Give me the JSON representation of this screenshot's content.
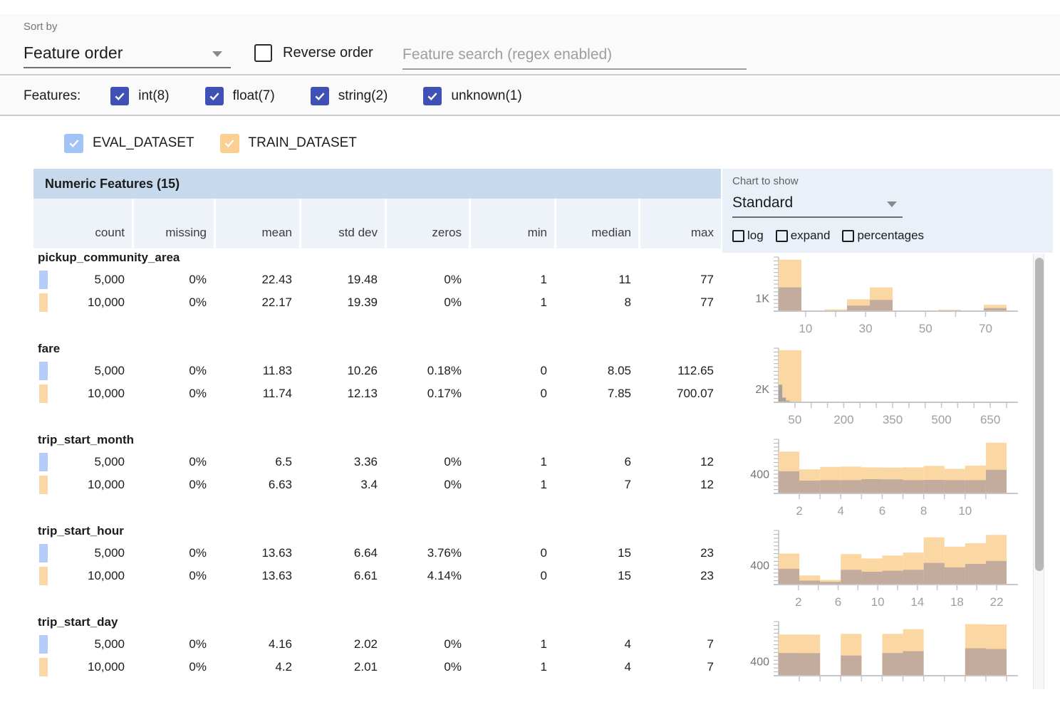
{
  "toolbar": {
    "sort_by_label": "Sort by",
    "sort_value": "Feature order",
    "reverse_label": "Reverse order",
    "search_placeholder": "Feature search (regex enabled)"
  },
  "filters": {
    "label": "Features:",
    "checkbox_color": "#3f51b5",
    "items": [
      {
        "label": "int(8)",
        "checked": true
      },
      {
        "label": "float(7)",
        "checked": true
      },
      {
        "label": "string(2)",
        "checked": true
      },
      {
        "label": "unknown(1)",
        "checked": true
      }
    ]
  },
  "datasets": [
    {
      "name": "EVAL_DATASET",
      "legend_color": "#a2c3f6",
      "chip_color": "#b4cdf8"
    },
    {
      "name": "TRAIN_DATASET",
      "legend_color": "#fbce92",
      "chip_color": "#fad8a6"
    }
  ],
  "table": {
    "title": "Numeric Features (15)",
    "columns": [
      "count",
      "missing",
      "mean",
      "std dev",
      "zeros",
      "min",
      "median",
      "max"
    ]
  },
  "chart_panel": {
    "label": "Chart to show",
    "selected": "Standard",
    "checkboxes": [
      "log",
      "expand",
      "percentages"
    ]
  },
  "features": [
    {
      "name": "pickup_community_area",
      "rows": [
        {
          "dataset": "EVAL_DATASET",
          "values": [
            "5,000",
            "0%",
            "22.43",
            "19.48",
            "0%",
            "1",
            "11",
            "77"
          ]
        },
        {
          "dataset": "TRAIN_DATASET",
          "values": [
            "10,000",
            "0%",
            "22.17",
            "19.39",
            "0%",
            "1",
            "8",
            "77"
          ]
        }
      ]
    },
    {
      "name": "fare",
      "rows": [
        {
          "dataset": "EVAL_DATASET",
          "values": [
            "5,000",
            "0%",
            "11.83",
            "10.26",
            "0.18%",
            "0",
            "8.05",
            "112.65"
          ]
        },
        {
          "dataset": "TRAIN_DATASET",
          "values": [
            "10,000",
            "0%",
            "11.74",
            "12.13",
            "0.17%",
            "0",
            "7.85",
            "700.07"
          ]
        }
      ]
    },
    {
      "name": "trip_start_month",
      "rows": [
        {
          "dataset": "EVAL_DATASET",
          "values": [
            "5,000",
            "0%",
            "6.5",
            "3.36",
            "0%",
            "1",
            "6",
            "12"
          ]
        },
        {
          "dataset": "TRAIN_DATASET",
          "values": [
            "10,000",
            "0%",
            "6.63",
            "3.4",
            "0%",
            "1",
            "7",
            "12"
          ]
        }
      ]
    },
    {
      "name": "trip_start_hour",
      "rows": [
        {
          "dataset": "EVAL_DATASET",
          "values": [
            "5,000",
            "0%",
            "13.63",
            "6.64",
            "3.76%",
            "0",
            "15",
            "23"
          ]
        },
        {
          "dataset": "TRAIN_DATASET",
          "values": [
            "10,000",
            "0%",
            "13.63",
            "6.61",
            "4.14%",
            "0",
            "15",
            "23"
          ]
        }
      ]
    },
    {
      "name": "trip_start_day",
      "rows": [
        {
          "dataset": "EVAL_DATASET",
          "values": [
            "5,000",
            "0%",
            "4.16",
            "2.02",
            "0%",
            "1",
            "4",
            "7"
          ]
        },
        {
          "dataset": "TRAIN_DATASET",
          "values": [
            "10,000",
            "0%",
            "4.2",
            "2.01",
            "0%",
            "1",
            "4",
            "7"
          ]
        }
      ]
    }
  ],
  "chart_colors": {
    "train": "#fbd8a3",
    "overlap": "#c3ac9e",
    "eval_over_train": "#a8a19c",
    "axis": "#c6c6c6",
    "tick_label": "#9e9e9e",
    "y_label": "#757575"
  },
  "chart_data": [
    {
      "feature": "pickup_community_area",
      "type": "histogram",
      "y_label": {
        "text": "1K",
        "value": 1000
      },
      "ymax": 4100,
      "x_domain": [
        1,
        77
      ],
      "x_ticks": [
        10,
        20,
        30,
        40,
        50,
        60,
        70
      ],
      "x_tick_labels": [
        10,
        30,
        50,
        70
      ],
      "bins": [
        {
          "x0": 1,
          "x1": 8.6,
          "train": 3900,
          "overlap": 1800
        },
        {
          "x0": 8.6,
          "x1": 16.2,
          "train": 50,
          "overlap": 20
        },
        {
          "x0": 16.2,
          "x1": 23.8,
          "train": 130,
          "overlap": 50
        },
        {
          "x0": 23.8,
          "x1": 31.4,
          "train": 900,
          "overlap": 420
        },
        {
          "x0": 31.4,
          "x1": 39,
          "train": 1800,
          "overlap": 850
        },
        {
          "x0": 39,
          "x1": 46.6,
          "train": 40,
          "overlap": 15
        },
        {
          "x0": 46.6,
          "x1": 54.2,
          "train": 30,
          "overlap": 10
        },
        {
          "x0": 54.2,
          "x1": 61.8,
          "train": 110,
          "overlap": 40
        },
        {
          "x0": 61.8,
          "x1": 69.4,
          "train": 40,
          "overlap": 15
        },
        {
          "x0": 69.4,
          "x1": 77,
          "train": 480,
          "overlap": 230
        }
      ]
    },
    {
      "feature": "fare",
      "type": "histogram",
      "y_label": {
        "text": "2K",
        "value": 2000
      },
      "ymax": 8000,
      "x_domain": [
        0,
        700
      ],
      "x_ticks": [
        50,
        100,
        150,
        200,
        250,
        300,
        350,
        400,
        450,
        500,
        550,
        600,
        650,
        700
      ],
      "x_tick_labels": [
        50,
        200,
        350,
        500,
        650
      ],
      "bins": [
        {
          "x0": 0,
          "x1": 70,
          "train": 7700,
          "overlap": 0
        },
        {
          "x0": 70,
          "x1": 140,
          "train": 30,
          "overlap": 0
        },
        {
          "x0": 140,
          "x1": 700,
          "train": 0,
          "overlap": 0
        }
      ],
      "eval_bins": [
        {
          "x0": 0,
          "x1": 11.3,
          "value": 2600
        },
        {
          "x0": 11.3,
          "x1": 22.5,
          "value": 700
        },
        {
          "x0": 22.5,
          "x1": 33.8,
          "value": 250
        },
        {
          "x0": 33.8,
          "x1": 45,
          "value": 80
        }
      ]
    },
    {
      "feature": "trip_start_month",
      "type": "histogram",
      "y_label": {
        "text": "400",
        "value": 400
      },
      "ymax": 1100,
      "x_domain": [
        1,
        12
      ],
      "x_ticks": [
        2,
        3,
        4,
        5,
        6,
        7,
        8,
        9,
        10,
        11
      ],
      "x_tick_labels": [
        2,
        4,
        6,
        8,
        10
      ],
      "bins": [
        {
          "x0": 1,
          "x1": 2,
          "train": 850,
          "overlap": 450
        },
        {
          "x0": 2,
          "x1": 3,
          "train": 490,
          "overlap": 260
        },
        {
          "x0": 3,
          "x1": 4,
          "train": 540,
          "overlap": 270
        },
        {
          "x0": 4,
          "x1": 5,
          "train": 545,
          "overlap": 270
        },
        {
          "x0": 5,
          "x1": 6,
          "train": 530,
          "overlap": 290
        },
        {
          "x0": 6,
          "x1": 7,
          "train": 525,
          "overlap": 285
        },
        {
          "x0": 7,
          "x1": 8,
          "train": 530,
          "overlap": 270
        },
        {
          "x0": 8,
          "x1": 9,
          "train": 560,
          "overlap": 275
        },
        {
          "x0": 9,
          "x1": 10,
          "train": 500,
          "overlap": 270
        },
        {
          "x0": 10,
          "x1": 11,
          "train": 565,
          "overlap": 270
        },
        {
          "x0": 11,
          "x1": 12,
          "train": 1030,
          "overlap": 480
        }
      ]
    },
    {
      "feature": "trip_start_hour",
      "type": "histogram",
      "y_label": {
        "text": "400",
        "value": 400
      },
      "ymax": 1100,
      "x_domain": [
        0,
        23
      ],
      "x_ticks": [
        2,
        4,
        6,
        8,
        10,
        12,
        14,
        16,
        18,
        20,
        22
      ],
      "x_tick_labels": [
        2,
        6,
        10,
        14,
        18,
        22
      ],
      "bins": [
        {
          "x0": 0,
          "x1": 2.09,
          "train": 630,
          "overlap": 320
        },
        {
          "x0": 2.09,
          "x1": 4.18,
          "train": 185,
          "overlap": 80
        },
        {
          "x0": 4.18,
          "x1": 6.27,
          "train": 95,
          "overlap": 55
        },
        {
          "x0": 6.27,
          "x1": 8.36,
          "train": 620,
          "overlap": 300
        },
        {
          "x0": 8.36,
          "x1": 10.45,
          "train": 530,
          "overlap": 260
        },
        {
          "x0": 10.45,
          "x1": 12.55,
          "train": 590,
          "overlap": 280
        },
        {
          "x0": 12.55,
          "x1": 14.64,
          "train": 650,
          "overlap": 300
        },
        {
          "x0": 14.64,
          "x1": 16.73,
          "train": 960,
          "overlap": 440
        },
        {
          "x0": 16.73,
          "x1": 18.82,
          "train": 770,
          "overlap": 350
        },
        {
          "x0": 18.82,
          "x1": 20.91,
          "train": 840,
          "overlap": 420
        },
        {
          "x0": 20.91,
          "x1": 23,
          "train": 1010,
          "overlap": 480
        }
      ]
    },
    {
      "feature": "trip_start_day",
      "type": "histogram",
      "y_label": {
        "text": "400",
        "value": 400
      },
      "ymax": 1500,
      "x_domain": [
        1,
        7
      ],
      "x_ticks": [
        1.545,
        2.091,
        2.636,
        3.182,
        3.727,
        4.273,
        4.818,
        5.364,
        5.909,
        6.455,
        7
      ],
      "x_tick_labels": [],
      "bins": [
        {
          "x0": 1,
          "x1": 1.545,
          "train": 1140,
          "overlap": 630
        },
        {
          "x0": 1.545,
          "x1": 2.091,
          "train": 1140,
          "overlap": 625
        },
        {
          "x0": 2.091,
          "x1": 2.636,
          "train": 0,
          "overlap": 0
        },
        {
          "x0": 2.636,
          "x1": 3.182,
          "train": 1160,
          "overlap": 560
        },
        {
          "x0": 3.182,
          "x1": 3.727,
          "train": 0,
          "overlap": 0
        },
        {
          "x0": 3.727,
          "x1": 4.273,
          "train": 1160,
          "overlap": 630
        },
        {
          "x0": 4.273,
          "x1": 4.818,
          "train": 1290,
          "overlap": 680
        },
        {
          "x0": 4.818,
          "x1": 5.364,
          "train": 0,
          "overlap": 0
        },
        {
          "x0": 5.364,
          "x1": 5.909,
          "train": 0,
          "overlap": 0
        },
        {
          "x0": 5.909,
          "x1": 6.455,
          "train": 1430,
          "overlap": 760
        },
        {
          "x0": 6.455,
          "x1": 7,
          "train": 1420,
          "overlap": 740
        }
      ]
    }
  ]
}
